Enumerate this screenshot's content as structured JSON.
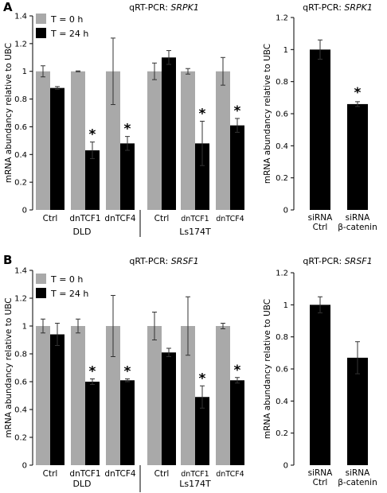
{
  "panels": [
    {
      "letter": "A",
      "gene": "SRPK1",
      "left": {
        "title_prefix": "qRT-PCR: ",
        "title_gene": "SRPK1",
        "legend": [
          "T = 0 h",
          "T = 24 h"
        ],
        "colors": {
          "t0": "#a9a9a9",
          "t24": "#000000"
        },
        "groups": [
          "DLD",
          "Ls174T"
        ]
      },
      "right": {
        "title_prefix": "qRT-PCR: ",
        "title_gene": "SRPK1"
      }
    },
    {
      "letter": "B",
      "gene": "SRSF1",
      "left": {
        "title_prefix": "qRT-PCR: ",
        "title_gene": "SRSF1",
        "legend": [
          "T = 0 h",
          "T = 24 h"
        ],
        "colors": {
          "t0": "#a9a9a9",
          "t24": "#000000"
        },
        "groups": [
          "DLD",
          "Ls174T"
        ]
      },
      "right": {
        "title_prefix": "qRT-PCR: ",
        "title_gene": "SRSF1"
      }
    }
  ],
  "chart_data": [
    {
      "type": "bar",
      "panel": "A",
      "title": "qRT-PCR: SRPK1",
      "ylabel": "mRNA abundancy relative to UBC",
      "ylim": [
        0,
        1.4
      ],
      "yticks": [
        "0",
        "0.2",
        "0.4",
        "0.6",
        "0.8",
        "1",
        "1.2",
        "1.4"
      ],
      "categories": [
        "Ctrl",
        "dnTCF1",
        "dnTCF4",
        "Ctrl",
        "dnTCF1",
        "dnTCF4"
      ],
      "groups": [
        {
          "name": "DLD",
          "categories": 3
        },
        {
          "name": "Ls174T",
          "categories": 3
        }
      ],
      "series": [
        {
          "name": "T = 0 h",
          "values": [
            1.0,
            1.0,
            1.0,
            1.0,
            1.0,
            1.0
          ],
          "errors": [
            0.04,
            0.003,
            0.24,
            0.06,
            0.02,
            0.1
          ]
        },
        {
          "name": "T = 24 h",
          "values": [
            0.88,
            0.43,
            0.48,
            1.1,
            0.48,
            0.61
          ],
          "errors": [
            0.01,
            0.06,
            0.05,
            0.05,
            0.16,
            0.05
          ]
        }
      ],
      "significance": [
        false,
        true,
        true,
        false,
        true,
        true
      ]
    },
    {
      "type": "bar",
      "panel": "A",
      "title": "qRT-PCR: SRPK1",
      "ylabel": "mRNA abundancy relative to UBC",
      "ylim": [
        0,
        1.2
      ],
      "yticks": [
        "0",
        "0.2",
        "0.4",
        "0.6",
        "0.8",
        "1",
        "1.2"
      ],
      "categories": [
        [
          "siRNA",
          "Ctrl"
        ],
        [
          "siRNA",
          "β-catenin"
        ]
      ],
      "values": [
        1.0,
        0.66
      ],
      "errors": [
        0.06,
        0.015
      ],
      "significance": [
        false,
        true
      ]
    },
    {
      "type": "bar",
      "panel": "B",
      "title": "qRT-PCR: SRSF1",
      "ylabel": "mRNA abundancy relative to UBC",
      "ylim": [
        0,
        1.4
      ],
      "yticks": [
        "0",
        "0.2",
        "0.4",
        "0.6",
        "0.8",
        "1",
        "1.2",
        "1.4"
      ],
      "categories": [
        "Ctrl",
        "dnTCF1",
        "dnTCF4",
        "Ctrl",
        "dnTCF1",
        "dnTCF4"
      ],
      "groups": [
        {
          "name": "DLD",
          "categories": 3
        },
        {
          "name": "Ls174T",
          "categories": 3
        }
      ],
      "series": [
        {
          "name": "T = 0 h",
          "values": [
            1.0,
            1.0,
            1.0,
            1.0,
            1.0,
            1.0
          ],
          "errors": [
            0.05,
            0.05,
            0.22,
            0.1,
            0.21,
            0.02
          ]
        },
        {
          "name": "T = 24 h",
          "values": [
            0.94,
            0.6,
            0.61,
            0.81,
            0.49,
            0.61
          ],
          "errors": [
            0.08,
            0.02,
            0.01,
            0.03,
            0.08,
            0.02
          ]
        }
      ],
      "significance": [
        false,
        true,
        true,
        false,
        true,
        true
      ]
    },
    {
      "type": "bar",
      "panel": "B",
      "title": "qRT-PCR: SRSF1",
      "ylabel": "mRNA abundancy relative to UBC",
      "ylim": [
        0,
        1.2
      ],
      "yticks": [
        "0",
        "0.2",
        "0.4",
        "0.6",
        "0.8",
        "1",
        "1.2"
      ],
      "categories": [
        [
          "siRNA",
          "Ctrl"
        ],
        [
          "siRNA",
          "β-catenin"
        ]
      ],
      "values": [
        1.0,
        0.67
      ],
      "errors": [
        0.05,
        0.1
      ],
      "significance": [
        false,
        false
      ]
    }
  ]
}
